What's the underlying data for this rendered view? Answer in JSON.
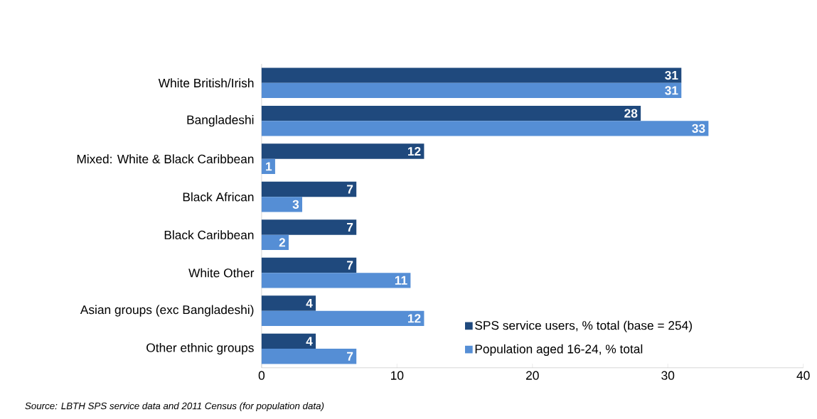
{
  "chart_data": {
    "type": "bar",
    "orientation": "horizontal",
    "categories": [
      "White British/Irish",
      "Bangladeshi",
      "Mixed: White & Black Caribbean",
      "Black African",
      "Black Caribbean",
      "White Other",
      "Asian groups (exc Bangladeshi)",
      "Other ethnic groups"
    ],
    "series": [
      {
        "name": "SPS service users, % total (base = 254)",
        "color": "#1f497d",
        "values": [
          31,
          28,
          12,
          7,
          7,
          7,
          4,
          4
        ]
      },
      {
        "name": "Population aged 16-24, % total",
        "color": "#558ed5",
        "values": [
          31,
          33,
          1,
          3,
          2,
          11,
          12,
          7
        ]
      }
    ],
    "xlim": [
      0,
      40
    ],
    "xticks": [
      0,
      10,
      20,
      30,
      40
    ],
    "data_labels": true,
    "legend": "bottom right",
    "grid": false,
    "annotations": [
      "Source: LBTH SPS service data and 2011 Census (for population data)"
    ]
  }
}
